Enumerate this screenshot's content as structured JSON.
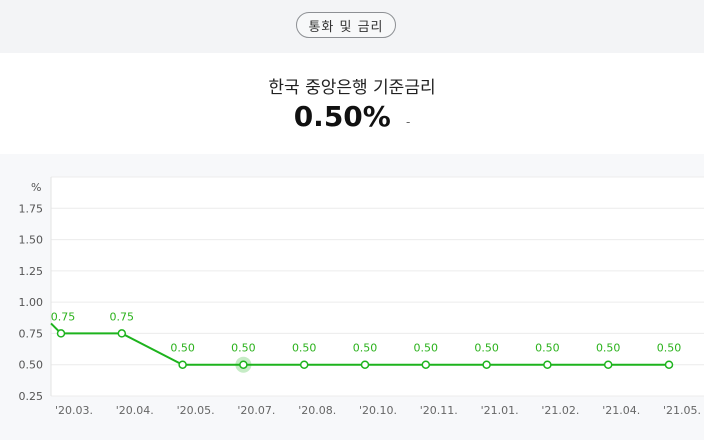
{
  "header": {
    "category_label": "통화 및 금리"
  },
  "rate": {
    "title": "한국 중앙은행 기준금리",
    "value": "0.50%",
    "change": "-"
  },
  "chart_data": {
    "type": "line",
    "unit_label": "%",
    "categories": [
      "'20.03.",
      "'20.04.",
      "'20.05.",
      "'20.07.",
      "'20.08.",
      "'20.10.",
      "'20.11.",
      "'21.01.",
      "'21.02.",
      "'21.04.",
      "'21.05."
    ],
    "series": [
      {
        "values": [
          0.75,
          0.75,
          0.5,
          0.5,
          0.5,
          0.5,
          0.5,
          0.5,
          0.5,
          0.5,
          0.5
        ]
      }
    ],
    "data_labels": [
      "0.75",
      "0.75",
      "0.50",
      "0.50",
      "0.50",
      "0.50",
      "0.50",
      "0.50",
      "0.50",
      "0.50",
      "0.50"
    ],
    "yticks": [
      0.25,
      0.5,
      0.75,
      1.0,
      1.25,
      1.5,
      1.75
    ],
    "ytick_labels": [
      "0.25",
      "0.50",
      "0.75",
      "1.00",
      "1.25",
      "1.50",
      "1.75"
    ],
    "ylim": [
      0.25,
      2.0
    ],
    "highlight_index": 3,
    "grid": true,
    "color": "#1db31d"
  }
}
